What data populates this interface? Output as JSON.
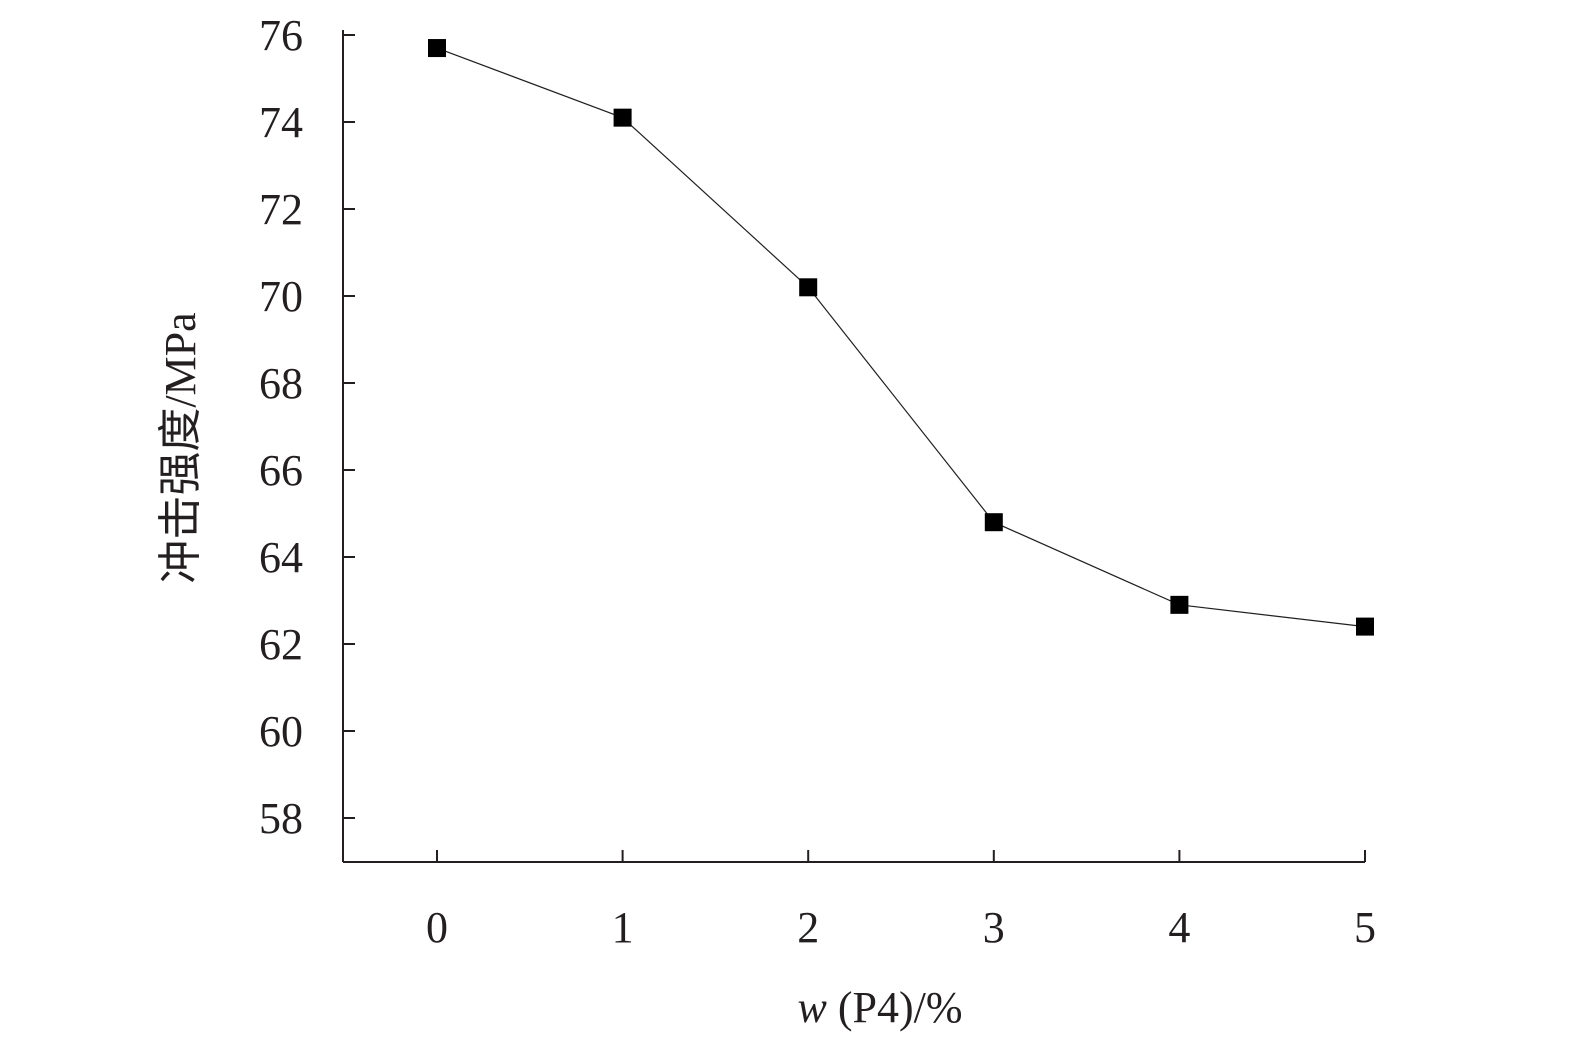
{
  "chart_data": {
    "type": "line",
    "xlabel": {
      "var": "w",
      "rest": " (P4)/%"
    },
    "ylabel": "冲击强度/MPa",
    "xlim": [
      -0.5,
      5
    ],
    "ylim": [
      57,
      76
    ],
    "x_ticks": [
      0,
      1,
      2,
      3,
      4,
      5
    ],
    "y_ticks": [
      58,
      60,
      62,
      64,
      66,
      68,
      70,
      72,
      74,
      76
    ],
    "grid": false,
    "series": [
      {
        "x": [
          0,
          1,
          2,
          3,
          4,
          5
        ],
        "values": [
          75.7,
          74.1,
          70.2,
          64.8,
          62.9,
          62.4
        ],
        "marker": "square",
        "color": "#000000"
      }
    ]
  }
}
